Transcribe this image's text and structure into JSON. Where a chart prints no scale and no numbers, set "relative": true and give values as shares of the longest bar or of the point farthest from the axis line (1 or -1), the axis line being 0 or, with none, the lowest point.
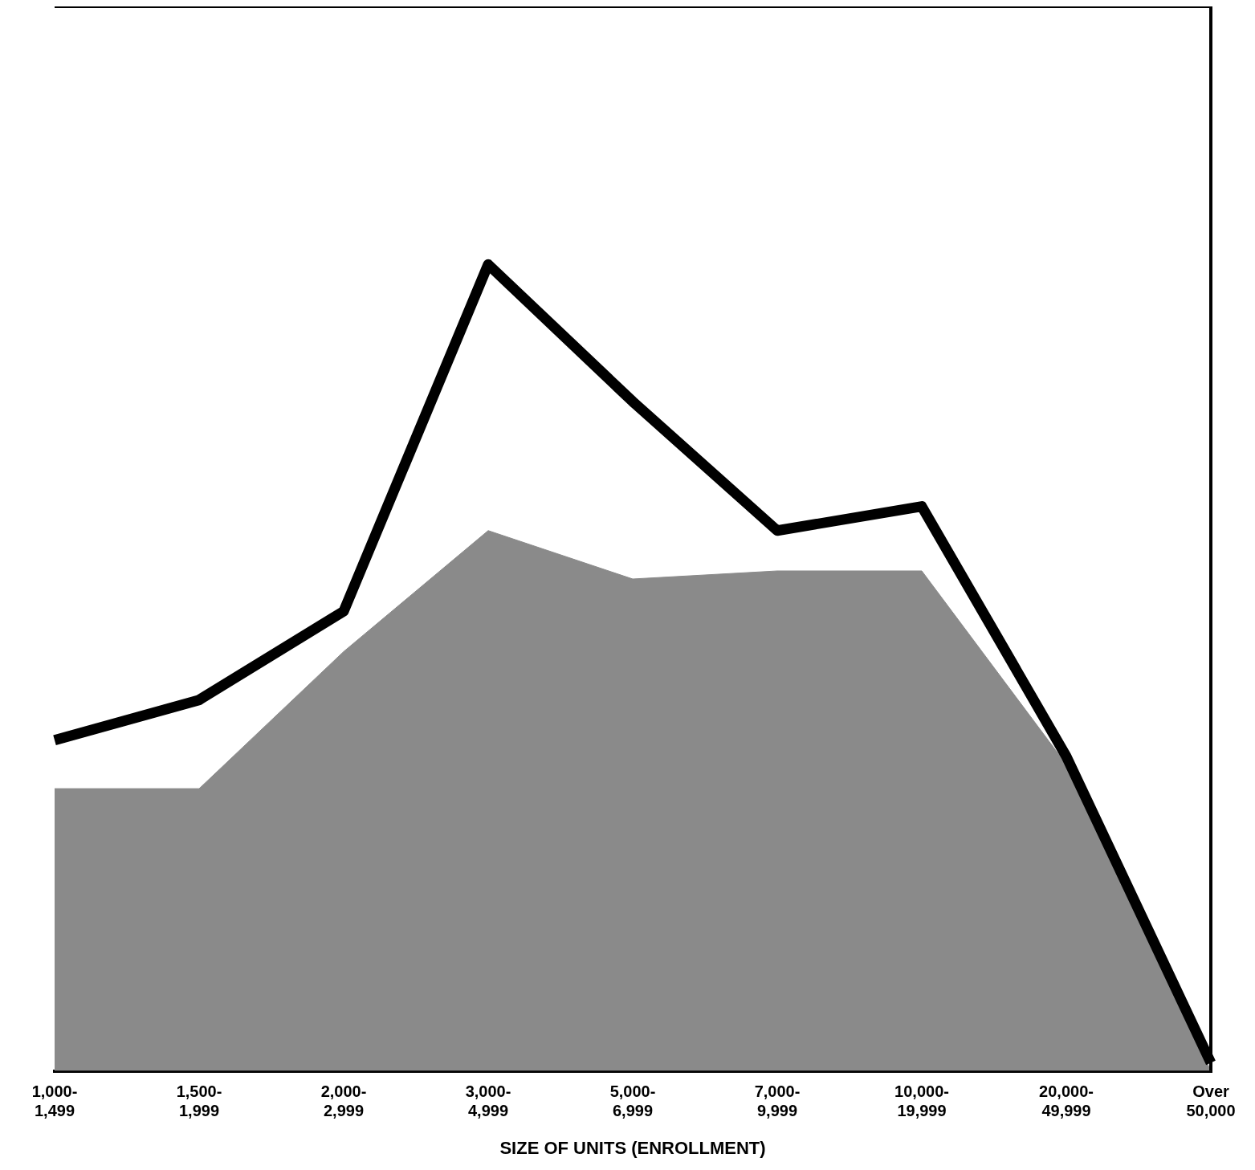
{
  "chart_data": {
    "type": "line",
    "xlabel": "SIZE OF UNITS (ENROLLMENT)",
    "relative": true,
    "legend": false,
    "grid": false,
    "categories": [
      "1,000-1,499",
      "1,500-1,999",
      "2,000-2,999",
      "3,000-4,999",
      "5,000-6,999",
      "7,000-9,999",
      "10,000-19,999",
      "20,000-49,999",
      "Over 50,000"
    ],
    "series": [
      {
        "type": "area",
        "color": "#8a8a8a",
        "values": [
          0.35,
          0.35,
          0.52,
          0.67,
          0.61,
          0.62,
          0.62,
          0.38,
          0
        ]
      },
      {
        "color": "#000000",
        "values": [
          0.41,
          0.46,
          0.57,
          1,
          0.83,
          0.67,
          0.7,
          0.39,
          0.01
        ]
      }
    ]
  }
}
